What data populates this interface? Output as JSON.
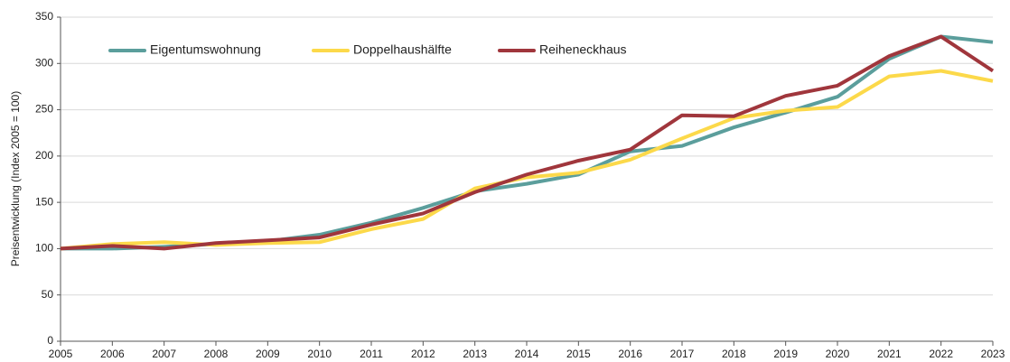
{
  "chart_data": {
    "type": "line",
    "y_label": "Preisentwicklung (Index 2005 = 100)",
    "x": [
      2005,
      2006,
      2007,
      2008,
      2009,
      2010,
      2011,
      2012,
      2013,
      2014,
      2015,
      2016,
      2017,
      2018,
      2019,
      2020,
      2021,
      2022,
      2023
    ],
    "series": [
      {
        "name": "Eigentumswohnung",
        "color": "#5b9e9c",
        "values": [
          100,
          100,
          102,
          105,
          108,
          115,
          128,
          144,
          162,
          170,
          180,
          205,
          211,
          231,
          247,
          264,
          305,
          329,
          323
        ]
      },
      {
        "name": "Doppelhaushälfte",
        "color": "#fcd94a",
        "values": [
          100,
          105,
          107,
          104,
          106,
          107,
          121,
          132,
          165,
          177,
          182,
          196,
          219,
          241,
          249,
          253,
          286,
          292,
          281
        ]
      },
      {
        "name": "Reiheneckhaus",
        "color": "#a0363c",
        "values": [
          100,
          103,
          100,
          106,
          109,
          112,
          126,
          138,
          161,
          180,
          195,
          207,
          244,
          243,
          265,
          276,
          308,
          329,
          292
        ]
      }
    ],
    "xlim": [
      2005,
      2023
    ],
    "xticks": [
      2005,
      2006,
      2007,
      2008,
      2009,
      2010,
      2011,
      2012,
      2013,
      2014,
      2015,
      2016,
      2017,
      2018,
      2019,
      2020,
      2021,
      2022,
      2023
    ],
    "ylim": [
      0,
      350
    ],
    "yticks": [
      0,
      50,
      100,
      150,
      200,
      250,
      300,
      350
    ],
    "grid": true,
    "legend": "top-left"
  }
}
